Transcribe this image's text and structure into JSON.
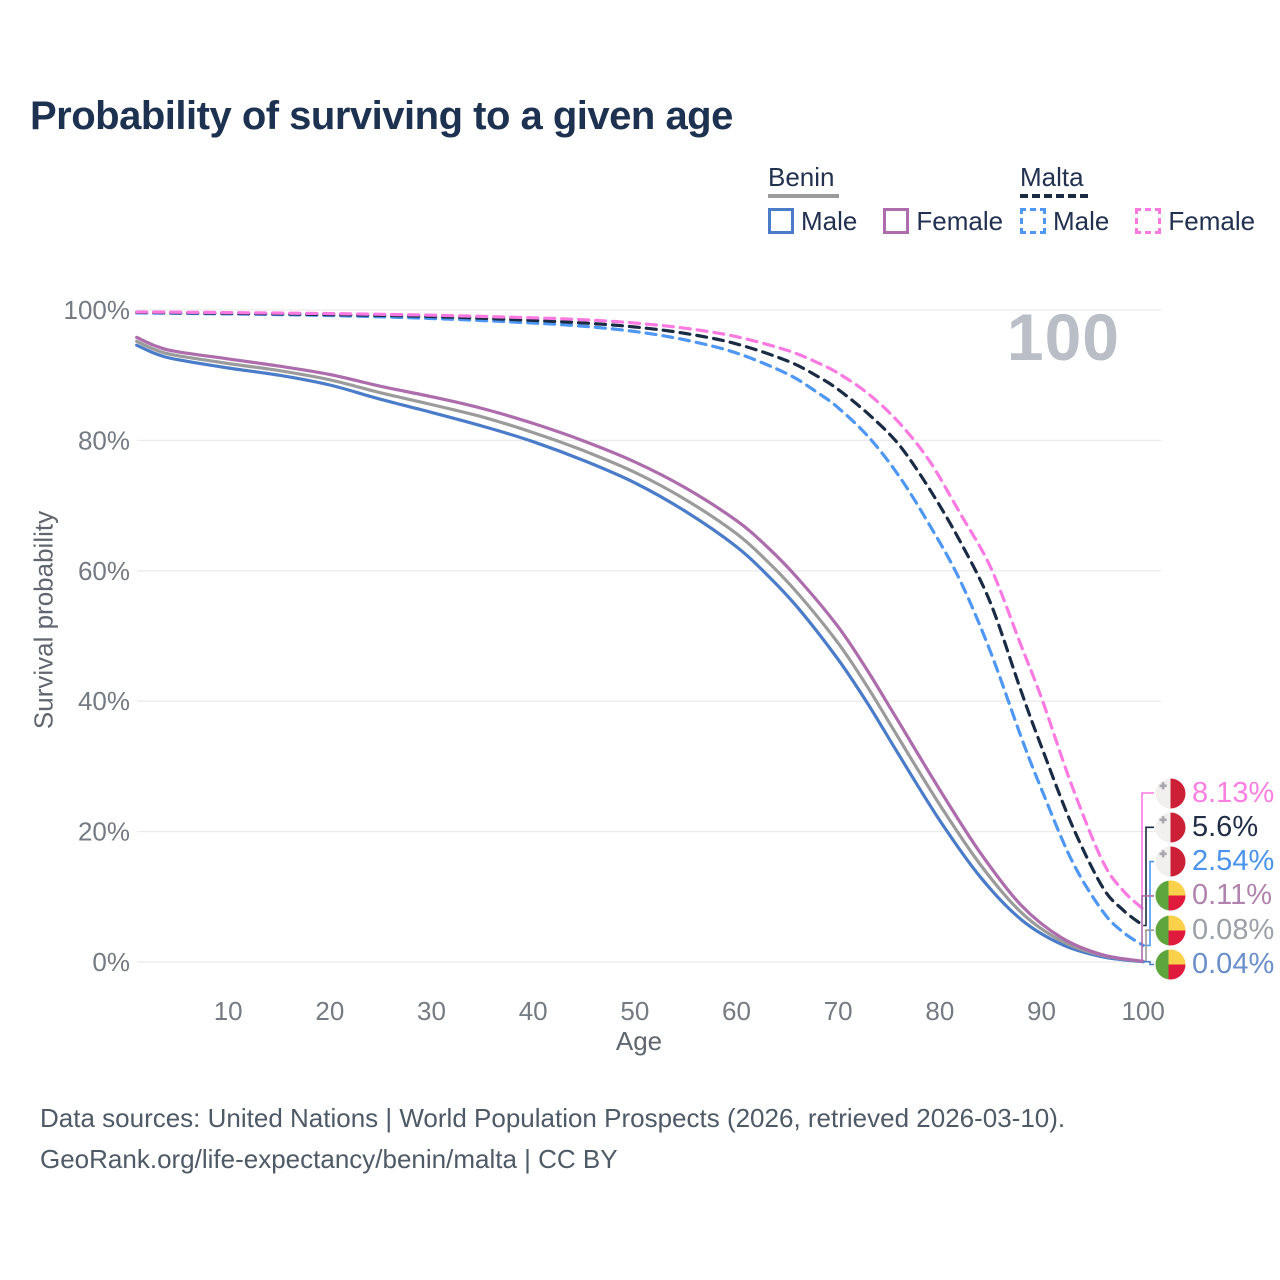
{
  "title": "Probability of surviving to a given age",
  "watermark": "100",
  "legend": {
    "groups": [
      {
        "name": "Benin",
        "line_style": "solid",
        "underline_color": "#9b9b9b",
        "items": [
          {
            "label": "Male",
            "color": "#4b7cc9"
          },
          {
            "label": "Female",
            "color": "#ad6cab"
          }
        ]
      },
      {
        "name": "Malta",
        "line_style": "dashed",
        "underline_color": "#1a2b44",
        "items": [
          {
            "label": "Male",
            "color": "#4e97f4"
          },
          {
            "label": "Female",
            "color": "#fb7ae1"
          }
        ]
      }
    ]
  },
  "chart_data": {
    "type": "line",
    "title": "Probability of surviving to a given age",
    "xlabel": "Age",
    "ylabel": "Survival probability",
    "xlim": [
      1,
      100
    ],
    "ylim": [
      0,
      100
    ],
    "x_ticks": [
      10,
      20,
      30,
      40,
      50,
      60,
      70,
      80,
      90,
      100
    ],
    "y_ticks": [
      {
        "value": 0,
        "label": "0%"
      },
      {
        "value": 20,
        "label": "20%"
      },
      {
        "value": 40,
        "label": "40%"
      },
      {
        "value": 60,
        "label": "60%"
      },
      {
        "value": 80,
        "label": "80%"
      },
      {
        "value": 100,
        "label": "100%"
      }
    ],
    "grid": "horizontal",
    "legend_position": "top-right",
    "age_marker": 100,
    "series": [
      {
        "name": "Benin Male",
        "country": "Benin",
        "sex": "male",
        "style": "solid",
        "color": "#4b7cc9",
        "flag": "benin",
        "end_label": "0.04%",
        "end_label_color": "#6b8fcb",
        "end_value": 0.04,
        "points": [
          [
            1,
            94.6
          ],
          [
            3,
            93.2
          ],
          [
            5,
            92.4
          ],
          [
            10,
            91.1
          ],
          [
            15,
            90.0
          ],
          [
            20,
            88.5
          ],
          [
            25,
            86.3
          ],
          [
            30,
            84.3
          ],
          [
            35,
            82.2
          ],
          [
            40,
            79.8
          ],
          [
            45,
            76.9
          ],
          [
            50,
            73.5
          ],
          [
            55,
            69.1
          ],
          [
            60,
            63.7
          ],
          [
            63,
            59.4
          ],
          [
            66,
            54.4
          ],
          [
            70,
            46.4
          ],
          [
            73,
            39.4
          ],
          [
            76,
            31.7
          ],
          [
            80,
            21.7
          ],
          [
            84,
            13.0
          ],
          [
            88,
            6.5
          ],
          [
            92,
            2.7
          ],
          [
            96,
            0.8
          ],
          [
            100,
            0.04
          ]
        ]
      },
      {
        "name": "Benin Total",
        "country": "Benin",
        "sex": "all",
        "style": "solid",
        "color": "#9b9b9b",
        "flag": "benin",
        "end_label": "0.08%",
        "end_label_color": "#9ba1a8",
        "end_value": 0.08,
        "points": [
          [
            1,
            95.2
          ],
          [
            3,
            93.8
          ],
          [
            5,
            93.0
          ],
          [
            10,
            91.8
          ],
          [
            15,
            90.7
          ],
          [
            20,
            89.3
          ],
          [
            25,
            87.3
          ],
          [
            30,
            85.5
          ],
          [
            35,
            83.6
          ],
          [
            40,
            81.2
          ],
          [
            45,
            78.4
          ],
          [
            50,
            75.1
          ],
          [
            55,
            70.9
          ],
          [
            60,
            65.7
          ],
          [
            63,
            61.5
          ],
          [
            66,
            56.6
          ],
          [
            70,
            48.9
          ],
          [
            73,
            41.9
          ],
          [
            76,
            34.2
          ],
          [
            80,
            24.1
          ],
          [
            84,
            14.9
          ],
          [
            88,
            7.6
          ],
          [
            92,
            3.2
          ],
          [
            96,
            1.0
          ],
          [
            100,
            0.08
          ]
        ]
      },
      {
        "name": "Benin Female",
        "country": "Benin",
        "sex": "female",
        "style": "solid",
        "color": "#ad6cab",
        "flag": "benin",
        "end_label": "0.11%",
        "end_label_color": "#b184ad",
        "end_value": 0.11,
        "points": [
          [
            1,
            95.8
          ],
          [
            3,
            94.4
          ],
          [
            5,
            93.6
          ],
          [
            10,
            92.5
          ],
          [
            15,
            91.4
          ],
          [
            20,
            90.1
          ],
          [
            25,
            88.3
          ],
          [
            30,
            86.7
          ],
          [
            35,
            84.9
          ],
          [
            40,
            82.6
          ],
          [
            45,
            79.9
          ],
          [
            50,
            76.7
          ],
          [
            55,
            72.7
          ],
          [
            60,
            67.7
          ],
          [
            63,
            63.7
          ],
          [
            66,
            58.9
          ],
          [
            70,
            51.4
          ],
          [
            73,
            44.4
          ],
          [
            76,
            36.7
          ],
          [
            80,
            26.4
          ],
          [
            84,
            16.7
          ],
          [
            88,
            8.7
          ],
          [
            92,
            3.7
          ],
          [
            96,
            1.1
          ],
          [
            100,
            0.11
          ]
        ]
      },
      {
        "name": "Malta Male",
        "country": "Malta",
        "sex": "male",
        "style": "dashed",
        "color": "#4e97f4",
        "flag": "malta",
        "end_label": "2.54%",
        "end_label_color": "#4b94ee",
        "end_value": 2.54,
        "points": [
          [
            1,
            99.55
          ],
          [
            10,
            99.4
          ],
          [
            20,
            99.15
          ],
          [
            30,
            98.7
          ],
          [
            40,
            98.0
          ],
          [
            45,
            97.5
          ],
          [
            50,
            96.7
          ],
          [
            55,
            95.4
          ],
          [
            60,
            93.4
          ],
          [
            65,
            90.2
          ],
          [
            68,
            87.3
          ],
          [
            70,
            85.0
          ],
          [
            73,
            80.5
          ],
          [
            76,
            74.5
          ],
          [
            79,
            67.0
          ],
          [
            82,
            58.5
          ],
          [
            85,
            47.5
          ],
          [
            88,
            34.5
          ],
          [
            90,
            26.5
          ],
          [
            93,
            15.5
          ],
          [
            96,
            7.8
          ],
          [
            98,
            4.6
          ],
          [
            100,
            2.54
          ]
        ]
      },
      {
        "name": "Malta Total",
        "country": "Malta",
        "sex": "all",
        "style": "dashed",
        "color": "#1a2b44",
        "flag": "malta",
        "end_label": "5.6%",
        "end_label_color": "#212e46",
        "end_value": 5.6,
        "points": [
          [
            1,
            99.65
          ],
          [
            10,
            99.5
          ],
          [
            20,
            99.3
          ],
          [
            30,
            99.0
          ],
          [
            40,
            98.4
          ],
          [
            45,
            98.0
          ],
          [
            50,
            97.4
          ],
          [
            55,
            96.4
          ],
          [
            60,
            94.8
          ],
          [
            65,
            92.2
          ],
          [
            68,
            89.8
          ],
          [
            70,
            87.8
          ],
          [
            73,
            84.0
          ],
          [
            76,
            79.3
          ],
          [
            79,
            72.5
          ],
          [
            82,
            64.5
          ],
          [
            85,
            55.0
          ],
          [
            88,
            41.5
          ],
          [
            90,
            33.0
          ],
          [
            93,
            21.0
          ],
          [
            96,
            11.5
          ],
          [
            98,
            8.0
          ],
          [
            100,
            5.6
          ]
        ]
      },
      {
        "name": "Malta Female",
        "country": "Malta",
        "sex": "female",
        "style": "dashed",
        "color": "#fb7ae1",
        "flag": "malta",
        "end_label": "8.13%",
        "end_label_color": "#fb80e1",
        "end_value": 8.13,
        "points": [
          [
            1,
            99.7
          ],
          [
            10,
            99.6
          ],
          [
            20,
            99.45
          ],
          [
            30,
            99.2
          ],
          [
            40,
            98.8
          ],
          [
            45,
            98.5
          ],
          [
            50,
            98.0
          ],
          [
            55,
            97.2
          ],
          [
            60,
            95.9
          ],
          [
            65,
            93.8
          ],
          [
            68,
            91.9
          ],
          [
            70,
            90.3
          ],
          [
            73,
            87.1
          ],
          [
            76,
            82.7
          ],
          [
            79,
            76.8
          ],
          [
            82,
            68.8
          ],
          [
            85,
            60.5
          ],
          [
            88,
            48.5
          ],
          [
            90,
            40.5
          ],
          [
            93,
            27.0
          ],
          [
            96,
            15.5
          ],
          [
            98,
            11.0
          ],
          [
            100,
            8.13
          ]
        ]
      }
    ]
  },
  "flag_colors": {
    "malta": {
      "white": "#f1f0ee",
      "red": "#cb2036",
      "cross": "#a7a7ad"
    },
    "benin": {
      "green": "#5fa53d",
      "yellow": "#fbd04b",
      "red": "#e01a3c"
    }
  },
  "footer": {
    "line1": "Data sources: United Nations | World Population Prospects (2026, retrieved 2026-03-10).",
    "line2": "GeoRank.org/life-expectancy/benin/malta | CC BY"
  }
}
